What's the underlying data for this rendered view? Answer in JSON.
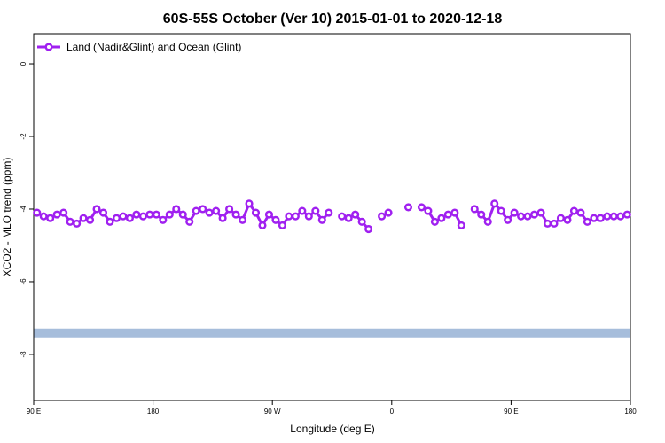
{
  "chart_data": {
    "type": "line",
    "title": "60S-55S October (Ver 10)   2015-01-01 to 2020-12-18",
    "x_label": "Longitude (deg E)",
    "y_label": "XCO2 - MLO trend (ppm)",
    "xlim": [
      90,
      540
    ],
    "xticks": [
      {
        "value": 90,
        "label": "90 E"
      },
      {
        "value": 180,
        "label": "180"
      },
      {
        "value": 270,
        "label": "90 W"
      },
      {
        "value": 360,
        "label": "0"
      },
      {
        "value": 450,
        "label": "90 E"
      },
      {
        "value": 540,
        "label": "180"
      }
    ],
    "ylim": [
      -9.27,
      0.83
    ],
    "yticks": [
      0,
      -2,
      -4,
      -6,
      -8
    ],
    "legend": "top-left",
    "reference_band": {
      "value": -7.41,
      "color": "#a6bddb"
    },
    "x": [
      92.5,
      97.5,
      102.5,
      107.5,
      112.5,
      117.5,
      122.5,
      127.5,
      132.5,
      137.5,
      142.5,
      147.5,
      152.5,
      157.5,
      162.5,
      167.5,
      172.5,
      177.5,
      182.5,
      187.5,
      192.5,
      197.5,
      202.5,
      207.5,
      212.5,
      217.5,
      222.5,
      227.5,
      232.5,
      237.5,
      242.5,
      247.5,
      252.5,
      257.5,
      262.5,
      267.5,
      272.5,
      277.5,
      282.5,
      287.5,
      292.5,
      297.5,
      302.5,
      307.5,
      312.5,
      317.5,
      322.5,
      327.5,
      332.5,
      337.5,
      342.5,
      347.5,
      352.5,
      357.5,
      362.5,
      367.5,
      372.5,
      377.5,
      382.5,
      387.5,
      392.5,
      397.5,
      402.5,
      407.5,
      412.5,
      417.5,
      422.5,
      427.5,
      432.5,
      437.5,
      442.5,
      447.5,
      452.5,
      457.5,
      462.5,
      467.5,
      472.5,
      477.5,
      482.5,
      487.5,
      492.5,
      497.5,
      502.5,
      507.5,
      512.5,
      517.5,
      522.5,
      527.5,
      532.5,
      537.5
    ],
    "series": [
      {
        "name": "Land (Nadir&Glint) and Ocean (Glint)",
        "color": "#a020f0",
        "values": [
          -4.1,
          -4.2,
          -4.25,
          -4.15,
          -4.1,
          -4.35,
          -4.4,
          -4.25,
          -4.3,
          -4.0,
          -4.1,
          -4.35,
          -4.25,
          -4.2,
          -4.25,
          -4.15,
          -4.2,
          -4.15,
          -4.15,
          -4.3,
          -4.15,
          -4.0,
          -4.15,
          -4.35,
          -4.05,
          -4.0,
          -4.1,
          -4.05,
          -4.25,
          -4.0,
          -4.15,
          -4.3,
          -3.85,
          -4.1,
          -4.45,
          -4.15,
          -4.3,
          -4.45,
          -4.2,
          -4.2,
          -4.05,
          -4.2,
          -4.05,
          -4.3,
          -4.1,
          null,
          -4.2,
          -4.25,
          -4.15,
          -4.35,
          -4.55,
          null,
          -4.2,
          -4.1,
          null,
          null,
          -3.95,
          null,
          -3.95,
          -4.05,
          -4.35,
          -4.25,
          -4.15,
          -4.1,
          -4.45,
          null,
          -4.0,
          -4.15,
          -4.35,
          -3.85,
          -4.05,
          -4.3,
          -4.1,
          -4.2,
          -4.2,
          -4.15,
          -4.1,
          -4.4,
          -4.4,
          -4.25,
          -4.3,
          -4.05,
          -4.1,
          -4.35,
          -4.25,
          -4.25,
          -4.2,
          -4.2,
          -4.2,
          -4.15
        ]
      }
    ]
  }
}
